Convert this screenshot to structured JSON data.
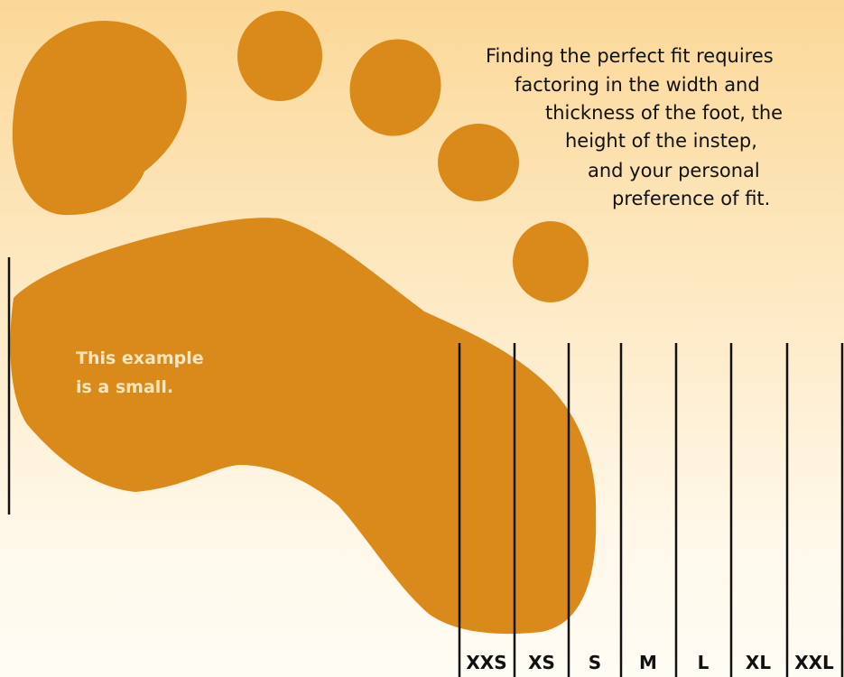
{
  "intro_lines": [
    "Finding the perfect fit requires",
    "factoring in the width and",
    "thickness of the foot, the",
    "height of the instep,",
    "and your personal",
    "preference of fit."
  ],
  "example_lines": [
    "This example",
    "is a small."
  ],
  "sizes": [
    "XXS",
    "XS",
    "S",
    "M",
    "L",
    "XL",
    "XXL"
  ]
}
